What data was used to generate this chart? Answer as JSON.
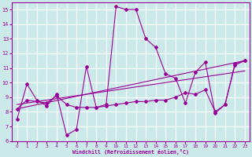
{
  "background_color": "#cce9e9",
  "grid_color": "#ffffff",
  "line_color": "#990099",
  "xlabel": "Windchill (Refroidissement éolien,°C)",
  "ylim": [
    6,
    15.5
  ],
  "xlim": [
    -0.5,
    23.5
  ],
  "yticks": [
    6,
    7,
    8,
    9,
    10,
    11,
    12,
    13,
    14,
    15
  ],
  "xticks": [
    0,
    1,
    2,
    3,
    4,
    5,
    6,
    7,
    8,
    9,
    10,
    11,
    12,
    13,
    14,
    15,
    16,
    17,
    18,
    19,
    20,
    21,
    22,
    23
  ],
  "series_main": {
    "x": [
      0,
      1,
      2,
      3,
      4,
      5,
      6,
      7,
      8,
      9,
      10,
      11,
      12,
      13,
      14,
      15,
      16,
      17,
      18,
      19,
      20,
      21,
      22,
      23
    ],
    "y": [
      7.5,
      9.9,
      8.8,
      8.4,
      9.2,
      6.4,
      6.8,
      11.1,
      8.3,
      8.5,
      15.2,
      15.0,
      15.0,
      13.0,
      12.4,
      10.6,
      10.3,
      8.6,
      10.7,
      11.4,
      7.9,
      8.5,
      11.3,
      11.5
    ]
  },
  "trend1": {
    "x": [
      0,
      23
    ],
    "y": [
      8.5,
      10.8
    ]
  },
  "trend2": {
    "x": [
      0,
      23
    ],
    "y": [
      8.2,
      11.5
    ]
  },
  "series2": {
    "x": [
      0,
      1,
      2,
      3,
      4,
      5,
      6,
      7,
      8,
      9,
      10,
      11,
      12,
      13,
      14,
      15,
      16,
      17,
      18,
      19,
      20,
      21,
      22,
      23
    ],
    "y": [
      8.2,
      8.8,
      8.7,
      8.6,
      9.1,
      8.5,
      8.3,
      8.3,
      8.3,
      8.4,
      8.5,
      8.6,
      8.7,
      8.7,
      8.8,
      8.8,
      9.0,
      9.3,
      9.2,
      9.5,
      8.0,
      8.5,
      11.2,
      11.5
    ]
  }
}
